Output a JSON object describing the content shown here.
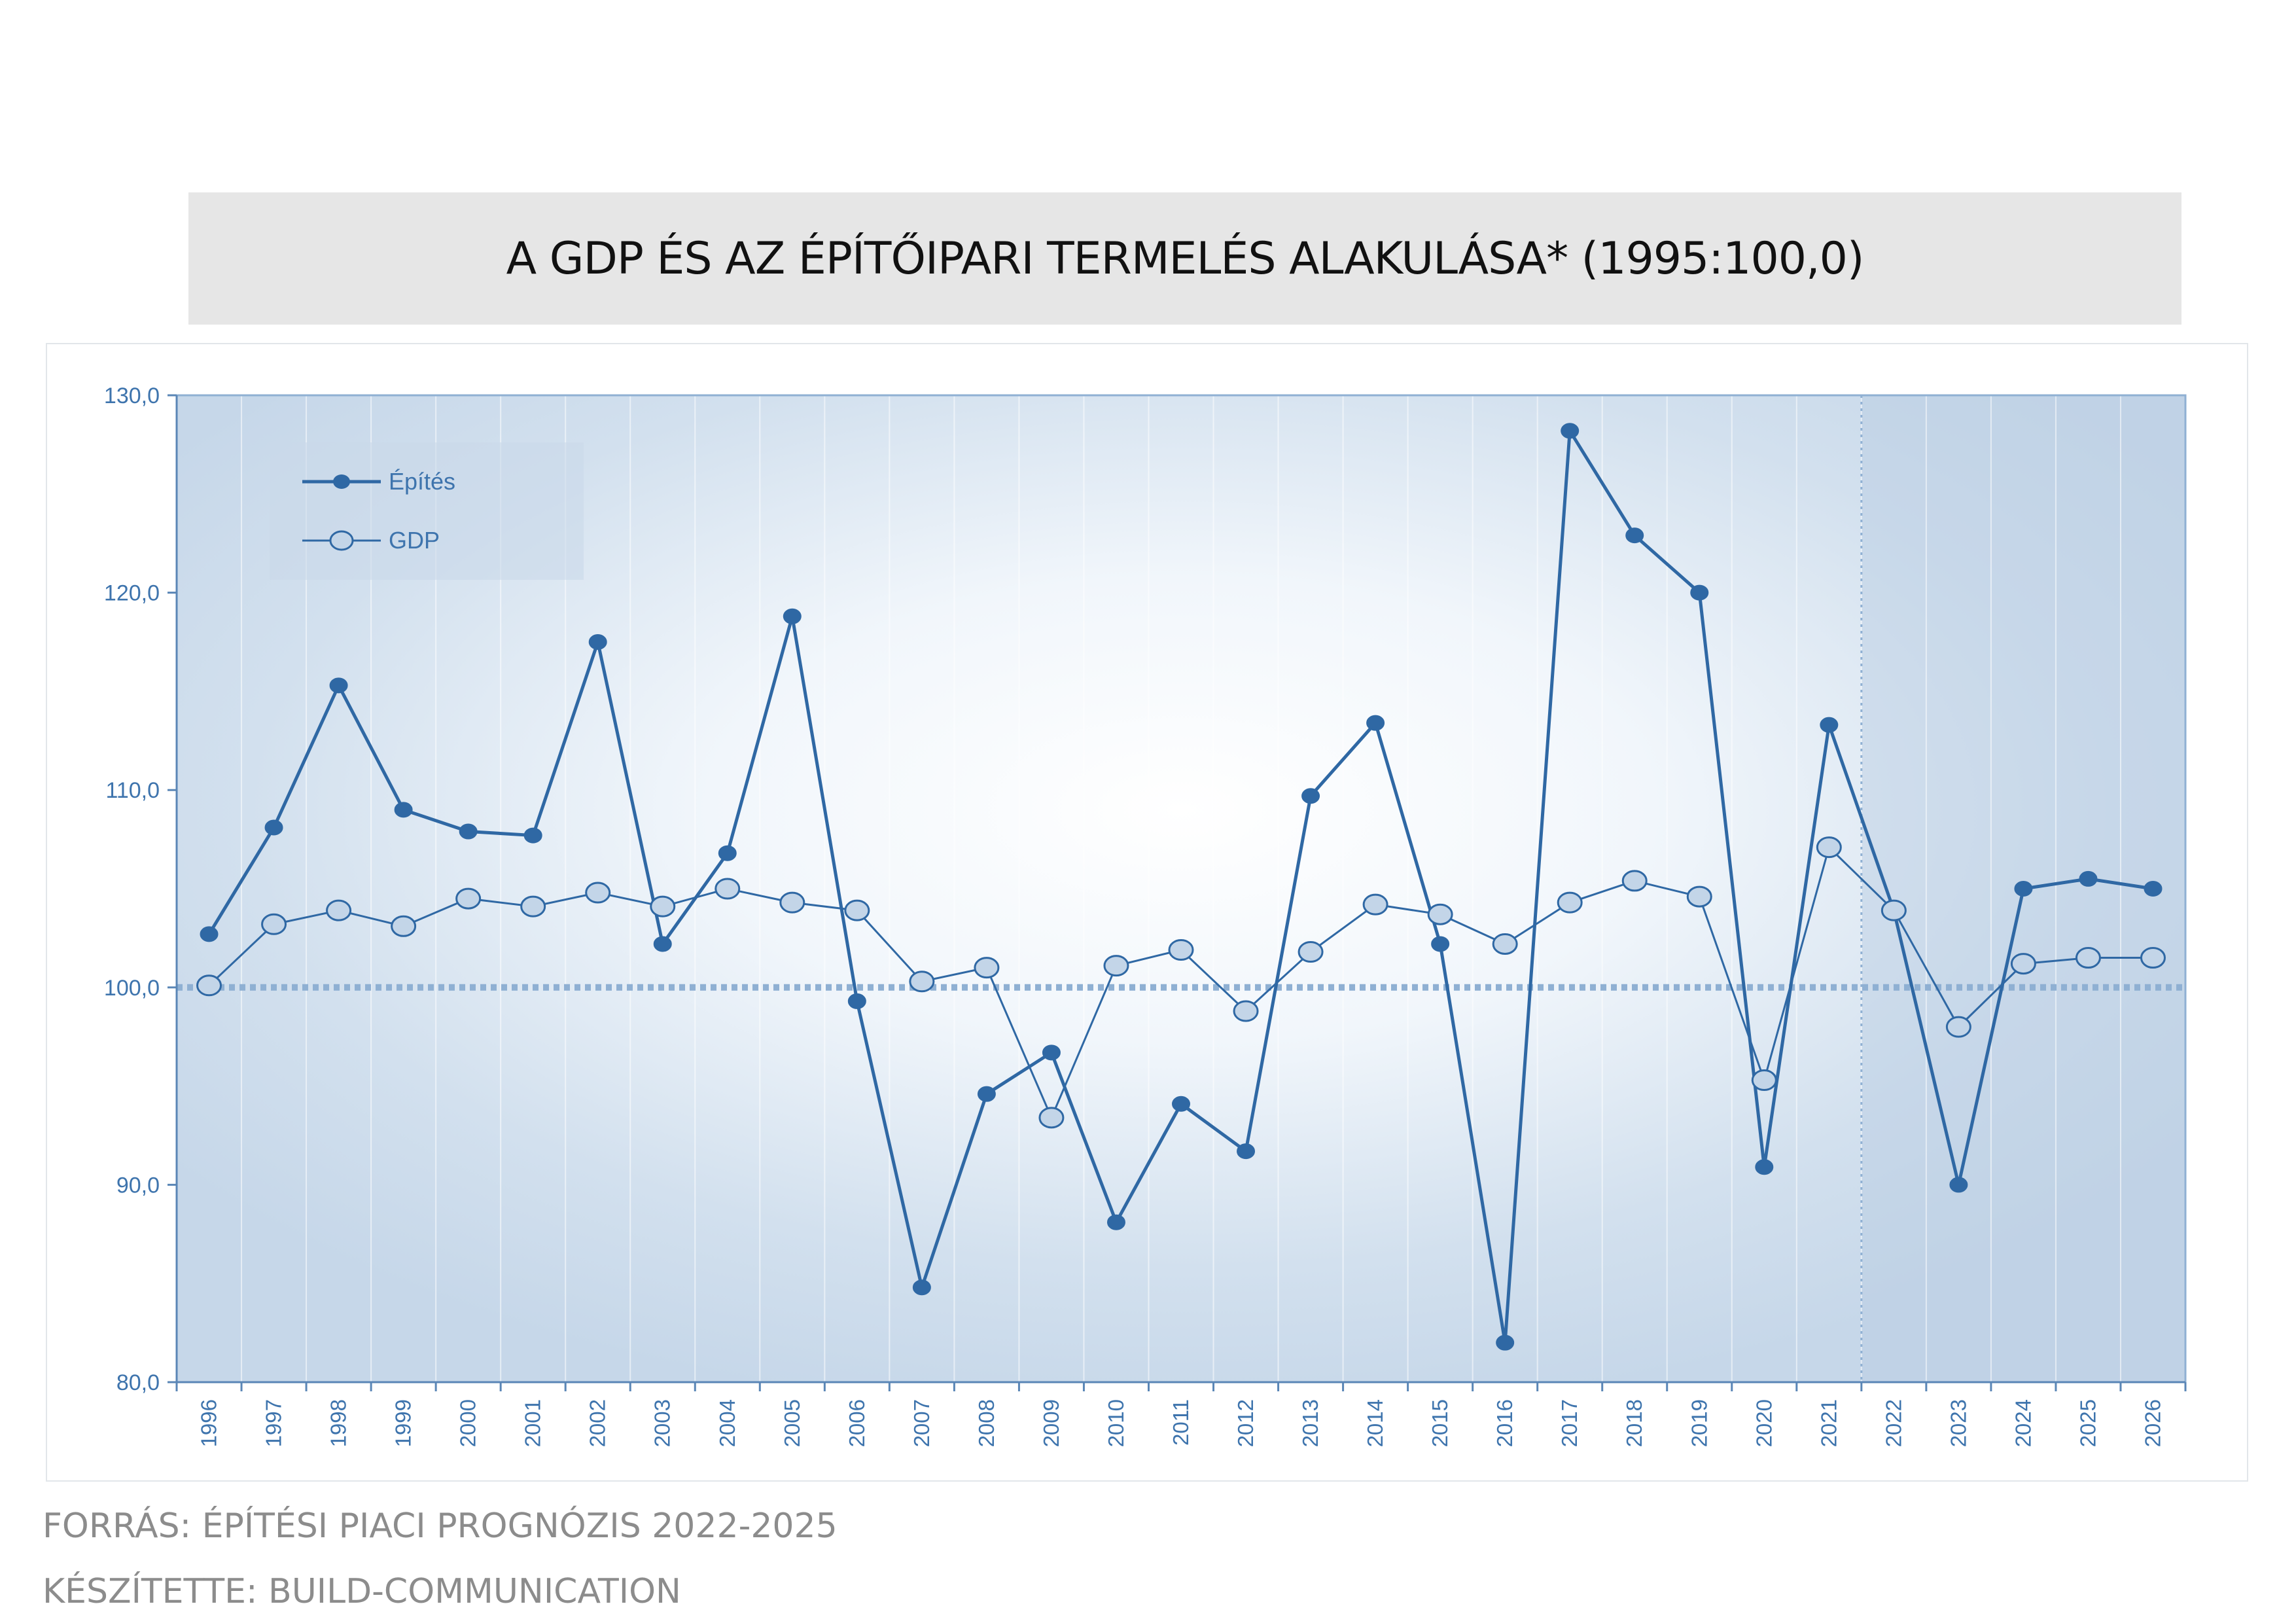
{
  "title": "A GDP ÉS AZ ÉPÍTŐIPARI TERMELÉS ALAKULÁSA* (1995:100,0)",
  "footer": {
    "source": "FORRÁS: ÉPÍTÉSI PIACI PROGNÓZIS 2022-2025",
    "author": "KÉSZÍTETTE: BUILD-COMMUNICATION"
  },
  "colors": {
    "line_dark": "#2f68a4",
    "marker_gdp_fill": "#c3d5e8",
    "axis_text": "#3e74ad",
    "baseline": "#8fb0d3"
  },
  "chart_data": {
    "type": "line",
    "title": "A GDP ÉS AZ ÉPÍTŐIPARI TERMELÉS ALAKULÁSA* (1995:100,0)",
    "xlabel": "",
    "ylabel": "",
    "ylim": [
      80,
      130
    ],
    "yticks": [
      80,
      90,
      100,
      110,
      120,
      130
    ],
    "ytick_labels": [
      "80,0",
      "90,0",
      "100,0",
      "110,0",
      "120,0",
      "130,0"
    ],
    "categories": [
      "1996",
      "1997",
      "1998",
      "1999",
      "2000",
      "2001",
      "2002",
      "2003",
      "2004",
      "2005",
      "2006",
      "2007",
      "2008",
      "2009",
      "2010",
      "2011",
      "2012",
      "2013",
      "2014",
      "2015",
      "2016",
      "2017",
      "2018",
      "2019",
      "2020",
      "2021",
      "2022",
      "2023",
      "2024",
      "2025",
      "2026"
    ],
    "baseline": 100,
    "forecast_start_after": "2021",
    "legend": {
      "position": "top-left"
    },
    "series": [
      {
        "name": "Építés",
        "marker": "filled",
        "values": [
          102.7,
          108.1,
          115.3,
          109.0,
          107.9,
          107.7,
          117.5,
          102.2,
          106.8,
          118.8,
          99.3,
          84.8,
          94.6,
          96.7,
          88.1,
          94.1,
          91.7,
          109.7,
          113.4,
          102.2,
          82.0,
          128.2,
          122.9,
          120.0,
          90.9,
          113.3,
          103.9,
          90.0,
          105.0,
          105.5,
          105.0
        ]
      },
      {
        "name": "GDP",
        "marker": "open",
        "values": [
          100.1,
          103.2,
          103.9,
          103.1,
          104.5,
          104.1,
          104.8,
          104.1,
          105.0,
          104.3,
          103.9,
          100.3,
          101.0,
          93.4,
          101.1,
          101.9,
          98.8,
          101.8,
          104.2,
          103.7,
          102.2,
          104.3,
          105.4,
          104.6,
          95.3,
          107.1,
          103.9,
          98.0,
          101.2,
          101.5,
          101.5
        ]
      }
    ]
  }
}
